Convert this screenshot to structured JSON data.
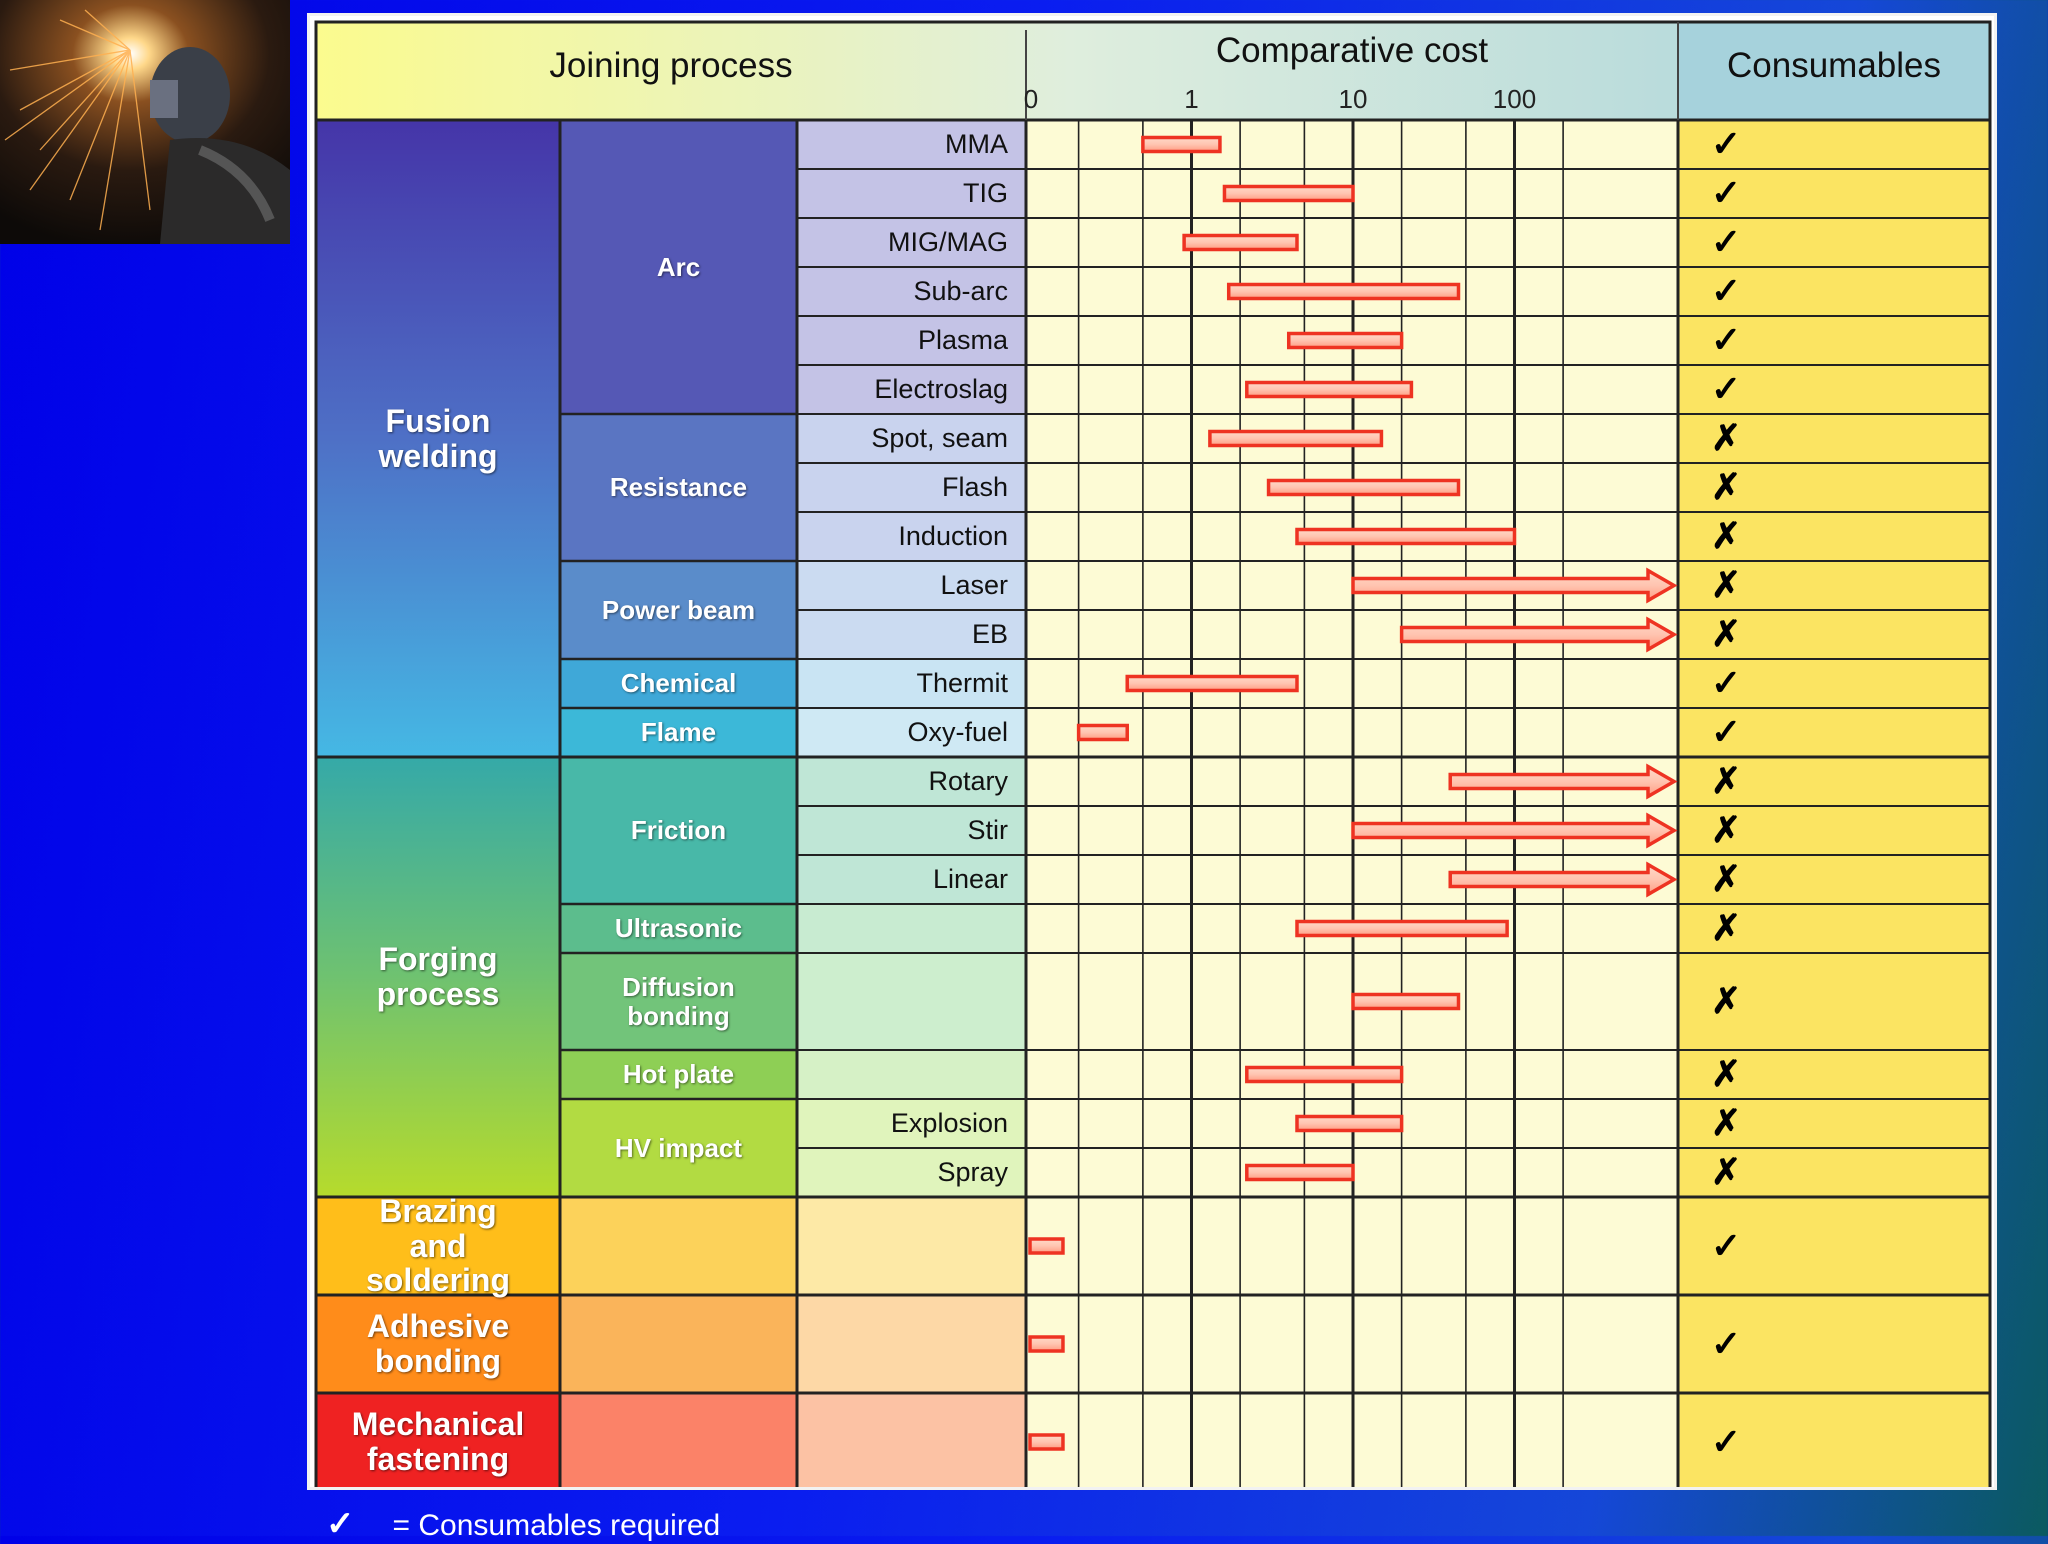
{
  "chart_data": {
    "type": "range-bar",
    "title": "Comparative cost",
    "header": {
      "joining_process": "Joining process",
      "comparative_cost": "Comparative cost",
      "consumables": "Consumables"
    },
    "axis": {
      "scale": "log",
      "tick_labels": [
        "0",
        "1",
        "10",
        "100"
      ],
      "tick_values": [
        0.1,
        1,
        10,
        100
      ],
      "range": [
        0.1,
        1000
      ]
    },
    "groups": [
      {
        "name": "Fusion\nwelding",
        "color": "#4a55b5"
      },
      {
        "name": "Forging\nprocess",
        "color": "#4cb890"
      },
      {
        "name": "Brazing\nand\nsoldering",
        "color": "#ffbe1a"
      },
      {
        "name": "Adhesive\nbonding",
        "color": "#ff8c1a"
      },
      {
        "name": "Mechanical\nfastening",
        "color": "#ef2222"
      }
    ],
    "subgroups": [
      {
        "name": "Arc",
        "color": "#5558b5"
      },
      {
        "name": "Resistance",
        "color": "#5a75c2"
      },
      {
        "name": "Power beam",
        "color": "#5a8cca"
      },
      {
        "name": "Chemical",
        "color": "#3fa8d8"
      },
      {
        "name": "Flame",
        "color": "#3cb8d8"
      },
      {
        "name": "Friction",
        "color": "#48b8a8"
      },
      {
        "name": "Ultrasonic",
        "color": "#5cbd8d"
      },
      {
        "name": "Diffusion\nbonding",
        "color": "#72c47a"
      },
      {
        "name": "Hot plate",
        "color": "#8ecf55"
      },
      {
        "name": "HV impact",
        "color": "#b2db42"
      },
      {
        "name": "",
        "color": "#fcd25a"
      },
      {
        "name": "",
        "color": "#fab45a"
      },
      {
        "name": "",
        "color": "#fb8268"
      }
    ],
    "rows": [
      {
        "process": "MMA",
        "min": 0.5,
        "max": 1.5,
        "open_ended": false,
        "consumables": "✓"
      },
      {
        "process": "TIG",
        "min": 1.6,
        "max": 10,
        "open_ended": false,
        "consumables": "✓"
      },
      {
        "process": "MIG/MAG",
        "min": 0.9,
        "max": 4.5,
        "open_ended": false,
        "consumables": "✓"
      },
      {
        "process": "Sub-arc",
        "min": 1.7,
        "max": 45,
        "open_ended": false,
        "consumables": "✓"
      },
      {
        "process": "Plasma",
        "min": 4,
        "max": 20,
        "open_ended": false,
        "consumables": "✓"
      },
      {
        "process": "Electroslag",
        "min": 2.2,
        "max": 23,
        "open_ended": false,
        "consumables": "✓"
      },
      {
        "process": "Spot, seam",
        "min": 1.3,
        "max": 15,
        "open_ended": false,
        "consumables": "✗"
      },
      {
        "process": "Flash",
        "min": 3,
        "max": 45,
        "open_ended": false,
        "consumables": "✗"
      },
      {
        "process": "Induction",
        "min": 4.5,
        "max": 100,
        "open_ended": false,
        "consumables": "✗"
      },
      {
        "process": "Laser",
        "min": 10,
        "max": 1000,
        "open_ended": true,
        "consumables": "✗"
      },
      {
        "process": "EB",
        "min": 20,
        "max": 1000,
        "open_ended": true,
        "consumables": "✗"
      },
      {
        "process": "Thermit",
        "min": 0.4,
        "max": 4.5,
        "open_ended": false,
        "consumables": "✓"
      },
      {
        "process": "Oxy-fuel",
        "min": 0.2,
        "max": 0.4,
        "open_ended": false,
        "consumables": "✓"
      },
      {
        "process": "Rotary",
        "min": 40,
        "max": 1000,
        "open_ended": true,
        "consumables": "✗"
      },
      {
        "process": "Stir",
        "min": 10,
        "max": 1000,
        "open_ended": true,
        "consumables": "✗"
      },
      {
        "process": "Linear",
        "min": 40,
        "max": 1000,
        "open_ended": true,
        "consumables": "✗"
      },
      {
        "process": "",
        "min": 4.5,
        "max": 90,
        "open_ended": false,
        "consumables": "✗"
      },
      {
        "process": "",
        "min": 10,
        "max": 45,
        "open_ended": false,
        "consumables": "✗"
      },
      {
        "process": "",
        "min": 2.2,
        "max": 20,
        "open_ended": false,
        "consumables": "✗"
      },
      {
        "process": "Explosion",
        "min": 4.5,
        "max": 20,
        "open_ended": false,
        "consumables": "✗"
      },
      {
        "process": "Spray",
        "min": 2.2,
        "max": 10,
        "open_ended": false,
        "consumables": "✗"
      },
      {
        "process": "",
        "min": 0.1,
        "max": 0.16,
        "open_ended": false,
        "consumables": "✓"
      },
      {
        "process": "",
        "min": 0.1,
        "max": 0.16,
        "open_ended": false,
        "consumables": "✓"
      },
      {
        "process": "",
        "min": 0.1,
        "max": 0.16,
        "open_ended": false,
        "consumables": "✓"
      }
    ],
    "legend": {
      "symbol": "✓",
      "text": "= Consumables required"
    },
    "colors": {
      "header": "#fbfb8e",
      "header_shade": "#a6d2dc",
      "plot_bg": "#fdfbd5",
      "consumables_bg": "#fbe462",
      "bar_fill": "#ffc4b0",
      "bar_edge": "#ee3322"
    }
  }
}
